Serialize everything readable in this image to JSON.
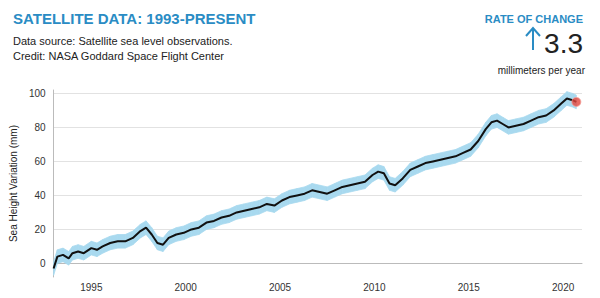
{
  "chart_data": {
    "type": "line",
    "title": "SATELLITE DATA: 1993-PRESENT",
    "subtitle": [
      "Data source: Satellite sea level observations.",
      "Credit: NASA Goddard Space Flight Center"
    ],
    "annotations": [
      {
        "label": "RATE OF CHANGE",
        "value": 3.3,
        "unit": "millimeters per year"
      }
    ],
    "ylabel": "Sea Height Variation (mm)",
    "x": [
      1993.0,
      1993.2,
      1993.5,
      1993.8,
      1994.0,
      1994.3,
      1994.6,
      1995.0,
      1995.3,
      1995.6,
      1996.0,
      1996.4,
      1996.8,
      1997.2,
      1997.6,
      1997.9,
      1998.2,
      1998.5,
      1998.8,
      1999.1,
      1999.5,
      1999.9,
      2000.3,
      2000.7,
      2001.1,
      2001.5,
      2001.9,
      2002.3,
      2002.7,
      2003.1,
      2003.5,
      2003.9,
      2004.3,
      2004.7,
      2005.1,
      2005.5,
      2005.9,
      2006.3,
      2006.7,
      2007.1,
      2007.5,
      2007.9,
      2008.3,
      2008.7,
      2009.1,
      2009.5,
      2009.9,
      2010.2,
      2010.5,
      2010.8,
      2011.1,
      2011.5,
      2011.9,
      2012.3,
      2012.7,
      2013.1,
      2013.5,
      2013.9,
      2014.3,
      2014.7,
      2015.1,
      2015.5,
      2015.9,
      2016.2,
      2016.5,
      2016.8,
      2017.1,
      2017.5,
      2017.9,
      2018.3,
      2018.7,
      2019.1,
      2019.5,
      2019.9,
      2020.2,
      2020.5,
      2020.7
    ],
    "values": [
      -3,
      4,
      5,
      3,
      6,
      7,
      6,
      9,
      8,
      10,
      12,
      13,
      13,
      15,
      19,
      21,
      17,
      12,
      11,
      15,
      17,
      18,
      20,
      21,
      24,
      25,
      27,
      28,
      30,
      31,
      32,
      33,
      35,
      34,
      37,
      39,
      40,
      41,
      43,
      42,
      41,
      43,
      45,
      46,
      47,
      48,
      52,
      54,
      53,
      47,
      46,
      50,
      55,
      57,
      59,
      60,
      61,
      62,
      63,
      65,
      67,
      72,
      79,
      83,
      84,
      82,
      80,
      81,
      82,
      84,
      86,
      87,
      90,
      94,
      97,
      96,
      95
    ],
    "errors": [
      4,
      4,
      4,
      4,
      4,
      4,
      4,
      4,
      4,
      4,
      4,
      4,
      4,
      4,
      4,
      4,
      4,
      4,
      4,
      4,
      4,
      4,
      4,
      4,
      4,
      4,
      4,
      4,
      4,
      4,
      4,
      4,
      4,
      4,
      4,
      4,
      4,
      4,
      4,
      4,
      4,
      4,
      4,
      4,
      4,
      4,
      4,
      4,
      4,
      4,
      4,
      4,
      4,
      4,
      4,
      4,
      4,
      4,
      4,
      4,
      4,
      4,
      4,
      4,
      4,
      4,
      4,
      4,
      4,
      4,
      4,
      4,
      4,
      4,
      4,
      4,
      4
    ],
    "color": "#111111",
    "xlim": [
      1993,
      2021
    ],
    "xticks": [
      1995,
      2000,
      2005,
      2010,
      2015,
      2020
    ],
    "ylim": [
      -8,
      102
    ],
    "yticks": [
      0,
      20,
      40,
      60,
      80,
      100
    ],
    "grid": true
  }
}
